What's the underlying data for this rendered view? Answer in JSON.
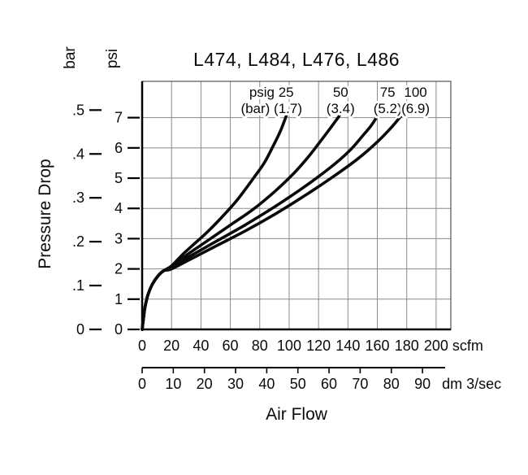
{
  "title": "L474, L484, L476, L486",
  "chart_data": {
    "type": "line",
    "title": "L474, L484, L476, L486",
    "x_axis": {
      "title": "Air Flow",
      "xlim_scfm": [
        0,
        210
      ],
      "scfm": {
        "unit": "scfm",
        "ticks": [
          0,
          20,
          40,
          60,
          80,
          100,
          120,
          140,
          160,
          180,
          200
        ]
      },
      "dm3s": {
        "unit": "dm 3/sec",
        "ticks": [
          0,
          10,
          20,
          30,
          40,
          50,
          60,
          70,
          80,
          90
        ],
        "scfm_per_unit": 2.119
      }
    },
    "y_axis": {
      "title": "Pressure Drop",
      "ylim_psi": [
        0,
        8.2
      ],
      "psi": {
        "unit": "psi",
        "ticks": [
          0,
          1,
          2,
          3,
          4,
          5,
          6,
          7
        ]
      },
      "bar": {
        "unit": "bar",
        "ticks": [
          "0",
          ".1",
          ".2",
          ".3",
          ".4",
          ".5"
        ],
        "psi_per_unit": 14.5
      }
    },
    "grid": true,
    "line_color": "#0a0a0a",
    "grid_color": "#8a8a8a",
    "border_color": "#555555",
    "series": [
      {
        "name": "25-psig",
        "label": [
          "psig 25",
          "(bar) (1.7)"
        ],
        "label_x_scfm": 88,
        "points_scfm_psi": [
          [
            0,
            0
          ],
          [
            1,
            0.4
          ],
          [
            2,
            0.75
          ],
          [
            4,
            1.15
          ],
          [
            7,
            1.5
          ],
          [
            11,
            1.78
          ],
          [
            15,
            1.95
          ],
          [
            20,
            2.1
          ],
          [
            28,
            2.5
          ],
          [
            36,
            2.85
          ],
          [
            45,
            3.25
          ],
          [
            55,
            3.75
          ],
          [
            65,
            4.3
          ],
          [
            75,
            4.95
          ],
          [
            83,
            5.5
          ],
          [
            89,
            6.05
          ],
          [
            94,
            6.55
          ],
          [
            98,
            7.05
          ]
        ]
      },
      {
        "name": "50-psig",
        "label": [
          "50",
          "(3.4)"
        ],
        "label_x_scfm": 135,
        "points_scfm_psi": [
          [
            0,
            0
          ],
          [
            1,
            0.4
          ],
          [
            2,
            0.75
          ],
          [
            4,
            1.15
          ],
          [
            7,
            1.5
          ],
          [
            11,
            1.78
          ],
          [
            15,
            1.95
          ],
          [
            20,
            2.05
          ],
          [
            30,
            2.45
          ],
          [
            45,
            2.95
          ],
          [
            60,
            3.45
          ],
          [
            75,
            3.95
          ],
          [
            90,
            4.55
          ],
          [
            103,
            5.15
          ],
          [
            113,
            5.7
          ],
          [
            121,
            6.2
          ],
          [
            128,
            6.65
          ],
          [
            134,
            7.05
          ]
        ]
      },
      {
        "name": "75-psig",
        "label": [
          "75",
          "(5.2)"
        ],
        "label_x_scfm": 167,
        "points_scfm_psi": [
          [
            0,
            0
          ],
          [
            1,
            0.4
          ],
          [
            2,
            0.75
          ],
          [
            4,
            1.15
          ],
          [
            7,
            1.5
          ],
          [
            11,
            1.78
          ],
          [
            15,
            1.95
          ],
          [
            20,
            2.0
          ],
          [
            32,
            2.4
          ],
          [
            50,
            2.9
          ],
          [
            70,
            3.45
          ],
          [
            90,
            4.05
          ],
          [
            110,
            4.7
          ],
          [
            128,
            5.35
          ],
          [
            141,
            5.9
          ],
          [
            150,
            6.4
          ],
          [
            156,
            6.75
          ],
          [
            160,
            7.05
          ]
        ]
      },
      {
        "name": "100-psig",
        "label": [
          "100",
          "(6.9)"
        ],
        "label_x_scfm": 186,
        "points_scfm_psi": [
          [
            0,
            0
          ],
          [
            1,
            0.4
          ],
          [
            2,
            0.75
          ],
          [
            4,
            1.15
          ],
          [
            7,
            1.5
          ],
          [
            11,
            1.78
          ],
          [
            15,
            1.95
          ],
          [
            20,
            2.0
          ],
          [
            32,
            2.3
          ],
          [
            50,
            2.75
          ],
          [
            70,
            3.25
          ],
          [
            90,
            3.8
          ],
          [
            110,
            4.4
          ],
          [
            130,
            5.05
          ],
          [
            147,
            5.65
          ],
          [
            160,
            6.2
          ],
          [
            170,
            6.7
          ],
          [
            176,
            7.05
          ]
        ]
      }
    ]
  }
}
